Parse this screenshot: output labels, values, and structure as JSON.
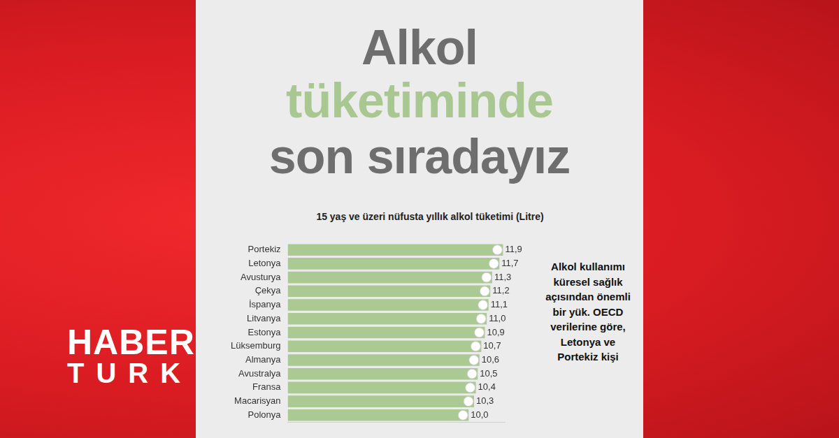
{
  "header": {
    "title_lines": [
      "Alkol",
      "tüketiminde",
      "son sıradayız"
    ]
  },
  "logo": [
    "HABER",
    "TURK"
  ],
  "note": "Alkol kullanımı küresel sağlık açısından önemli bir yük. OECD verilerine göre, Letonya ve Portekiz kişi",
  "chart_data": {
    "type": "bar",
    "orientation": "horizontal",
    "title": "15 yaş ve üzeri nüfusta yıllık alkol tüketimi (Litre)",
    "categories": [
      "Portekiz",
      "Letonya",
      "Avusturya",
      "Çekya",
      "İspanya",
      "Litvanya",
      "Estonya",
      "Lüksemburg",
      "Almanya",
      "Avustralya",
      "Fransa",
      "Macarisyan",
      "Polonya"
    ],
    "values": [
      11.9,
      11.7,
      11.3,
      11.2,
      11.1,
      11.0,
      10.9,
      10.7,
      10.6,
      10.5,
      10.4,
      10.3,
      10.0
    ],
    "value_labels": [
      "11,9",
      "11,7",
      "11,3",
      "11,2",
      "11,1",
      "11,0",
      "10,9",
      "10,7",
      "10,6",
      "10,5",
      "10,4",
      "10,3",
      "10,0"
    ],
    "color": "#aac993",
    "xlim": [
      0,
      12
    ],
    "xticks": [],
    "grid": false,
    "data_labels": true,
    "tick_labels": "y"
  }
}
